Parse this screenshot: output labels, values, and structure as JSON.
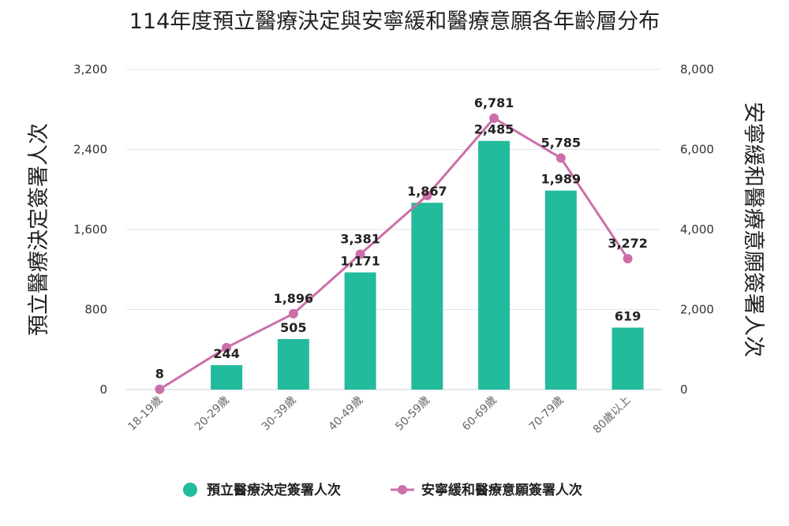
{
  "chart_data": {
    "type": "bar",
    "title": "114年度預立醫療決定與安寧緩和醫療意願各年齡層分布",
    "categories": [
      "18-19歲",
      "20-29歲",
      "30-39歲",
      "40-49歲",
      "50-59歲",
      "60-69歲",
      "70-79歲",
      "80歲以上"
    ],
    "y_left": {
      "label": "預立醫療決定簽署人次",
      "range": [
        0,
        3200
      ],
      "ticks": [
        "0",
        "800",
        "1,600",
        "2,400",
        "3,200"
      ]
    },
    "y_right": {
      "label": "安寧緩和醫療意願簽署人次",
      "range": [
        0,
        8000
      ],
      "ticks": [
        "0",
        "2,000",
        "4,000",
        "6,000",
        "8,000"
      ]
    },
    "grid": true,
    "legend_position": "bottom-center",
    "series": [
      {
        "name": "預立醫療決定簽署人次",
        "type": "bar",
        "axis": "left",
        "color": "#22bb9c",
        "values": [
          null,
          244,
          505,
          1171,
          1867,
          2485,
          1989,
          619
        ],
        "labels": [
          "",
          "244",
          "505",
          "1,171",
          "1,867",
          "2,485",
          "1,989",
          "619"
        ]
      },
      {
        "name": "安寧緩和醫療意願簽署人次",
        "type": "line",
        "axis": "right",
        "color": "#cc6fa9",
        "values": [
          8,
          1050,
          1896,
          3381,
          4850,
          6781,
          5785,
          3272
        ],
        "labels": [
          "8",
          "",
          "1,896",
          "3,381",
          "",
          "6,781",
          "5,785",
          "3,272"
        ]
      }
    ]
  }
}
